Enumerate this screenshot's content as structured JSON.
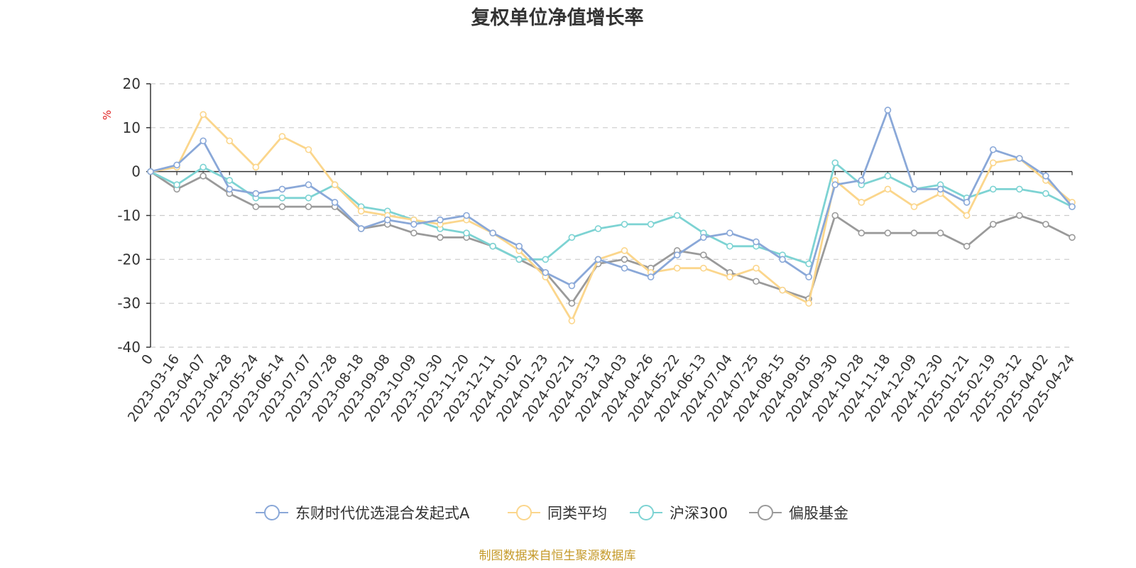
{
  "chart_data": {
    "type": "line",
    "title": "复权单位净值增长率",
    "ylabel": "%",
    "ylim": [
      -40,
      20
    ],
    "yticks": [
      20,
      10,
      0,
      -10,
      -20,
      -30,
      -40
    ],
    "grid": true,
    "legend_position": "bottom",
    "source_note": "制图数据来自恒生聚源数据库",
    "categories": [
      "0",
      "2023-03-16",
      "2023-04-07",
      "2023-04-28",
      "2023-05-24",
      "2023-06-14",
      "2023-07-07",
      "2023-07-28",
      "2023-08-18",
      "2023-09-08",
      "2023-10-09",
      "2023-10-30",
      "2023-11-20",
      "2023-12-11",
      "2024-01-02",
      "2024-01-23",
      "2024-02-21",
      "2024-03-13",
      "2024-04-03",
      "2024-04-26",
      "2024-05-22",
      "2024-06-13",
      "2024-07-04",
      "2024-07-25",
      "2024-08-15",
      "2024-09-05",
      "2024-09-30",
      "2024-10-28",
      "2024-11-18",
      "2024-12-09",
      "2024-12-30",
      "2025-01-21",
      "2025-02-19",
      "2025-03-12",
      "2025-04-02",
      "2025-04-24"
    ],
    "series": [
      {
        "name": "东财时代优选混合发起式A",
        "color": "#8aa8d8",
        "values": [
          0,
          1.5,
          7,
          -4,
          -5,
          -4,
          -3,
          -7,
          -13,
          -11,
          -12,
          -11,
          -10,
          -14,
          -17,
          -23,
          -26,
          -20,
          -22,
          -24,
          -19,
          -15,
          -14,
          -16,
          -20,
          -24,
          -3,
          -2,
          14,
          -4,
          -4,
          -7,
          5,
          3,
          -1,
          -8
        ]
      },
      {
        "name": "同类平均",
        "color": "#fbd68c",
        "values": [
          0,
          1,
          13,
          7,
          1,
          8,
          5,
          -3,
          -9,
          -10,
          -11,
          -12,
          -11,
          -14,
          -18,
          -24,
          -34,
          -20,
          -18,
          -23,
          -22,
          -22,
          -24,
          -22,
          -27,
          -30,
          -2,
          -7,
          -4,
          -8,
          -5,
          -10,
          2,
          3,
          -2,
          -7
        ]
      },
      {
        "name": "沪深300",
        "color": "#7dd3d3",
        "values": [
          0,
          -3,
          1,
          -2,
          -6,
          -6,
          -6,
          -3,
          -8,
          -9,
          -11,
          -13,
          -14,
          -17,
          -20,
          -20,
          -15,
          -13,
          -12,
          -12,
          -10,
          -14,
          -17,
          -17,
          -19,
          -21,
          2,
          -3,
          -1,
          -4,
          -3,
          -6,
          -4,
          -4,
          -5,
          -8
        ]
      },
      {
        "name": "偏股基金",
        "color": "#9a9a9a",
        "values": [
          0,
          -4,
          -1,
          -5,
          -8,
          -8,
          -8,
          -8,
          -13,
          -12,
          -14,
          -15,
          -15,
          -17,
          -20,
          -23,
          -30,
          -21,
          -20,
          -22,
          -18,
          -19,
          -23,
          -25,
          -27,
          -29,
          -10,
          -14,
          -14,
          -14,
          -14,
          -17,
          -12,
          -10,
          -12,
          -15
        ]
      }
    ]
  }
}
